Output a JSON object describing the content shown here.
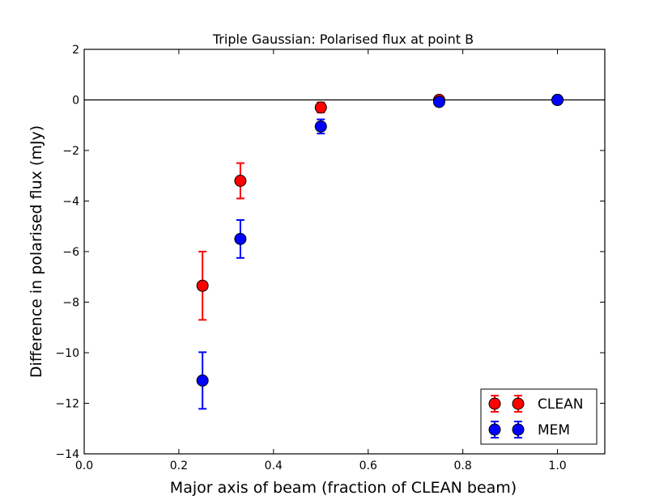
{
  "chart_data": {
    "type": "scatter",
    "title": "Triple Gaussian: Polarised flux at point B",
    "xlabel": "Major axis of beam (fraction of CLEAN beam)",
    "ylabel": "Difference in polarised flux (mJy)",
    "xlim": [
      0.0,
      1.1
    ],
    "ylim": [
      -14,
      2
    ],
    "xticks": [
      0.0,
      0.2,
      0.4,
      0.6,
      0.8,
      1.0
    ],
    "xtick_labels": [
      "0.0",
      "0.2",
      "0.4",
      "0.6",
      "0.8",
      "1.0"
    ],
    "yticks": [
      -14,
      -12,
      -10,
      -8,
      -6,
      -4,
      -2,
      0,
      2
    ],
    "ytick_labels": [
      "−14",
      "−12",
      "−10",
      "−8",
      "−6",
      "−4",
      "−2",
      "0",
      "2"
    ],
    "grid": false,
    "reference_line_y": 0,
    "legend_position": "bottom-right",
    "series": [
      {
        "name": "CLEAN",
        "color": "#ff0000",
        "points": [
          {
            "x": 0.25,
            "y": -7.35,
            "err": 1.35
          },
          {
            "x": 0.33,
            "y": -3.2,
            "err": 0.7
          },
          {
            "x": 0.5,
            "y": -0.3,
            "err": 0.2
          },
          {
            "x": 0.75,
            "y": 0.0,
            "err": 0.05
          },
          {
            "x": 1.0,
            "y": 0.0,
            "err": 0.05
          }
        ]
      },
      {
        "name": "MEM",
        "color": "#0000ff",
        "points": [
          {
            "x": 0.25,
            "y": -11.1,
            "err": 1.12
          },
          {
            "x": 0.33,
            "y": -5.5,
            "err": 0.75
          },
          {
            "x": 0.5,
            "y": -1.05,
            "err": 0.28
          },
          {
            "x": 0.75,
            "y": -0.08,
            "err": 0.05
          },
          {
            "x": 1.0,
            "y": 0.0,
            "err": 0.05
          }
        ]
      }
    ]
  }
}
